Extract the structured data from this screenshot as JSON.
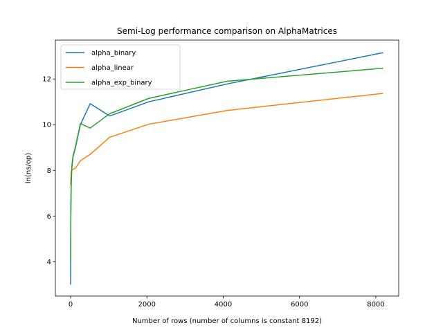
{
  "chart_data": {
    "type": "line",
    "title": "Semi-Log performance comparison on AlphaMatrices",
    "xlabel": "Number of rows (number of columns is constant 8192)",
    "ylabel": "ln(ns/op)",
    "xlim": [
      -400,
      8600
    ],
    "ylim": [
      2.5,
      13.7
    ],
    "xticks": [
      0,
      2000,
      4000,
      6000,
      8000
    ],
    "yticks": [
      4,
      6,
      8,
      10,
      12
    ],
    "grid": false,
    "legend_position": "top-left",
    "x": [
      1,
      2,
      4,
      8,
      16,
      32,
      64,
      128,
      256,
      512,
      1024,
      2048,
      4096,
      8192
    ],
    "series": [
      {
        "name": "alpha_binary",
        "color": "#1f77b4",
        "values": [
          3.0,
          4.1,
          5.4,
          6.5,
          7.4,
          8.1,
          8.6,
          9.0,
          10.0,
          10.92,
          10.38,
          11.0,
          11.78,
          13.15
        ]
      },
      {
        "name": "alpha_linear",
        "color": "#ff7f0e",
        "values": [
          7.4,
          7.35,
          7.55,
          7.7,
          7.95,
          8.0,
          8.05,
          8.1,
          8.42,
          8.7,
          9.45,
          10.02,
          10.62,
          11.37
        ]
      },
      {
        "name": "alpha_exp_binary",
        "color": "#2ca02c",
        "values": [
          4.0,
          5.0,
          6.0,
          6.8,
          7.6,
          8.2,
          8.65,
          9.05,
          10.05,
          9.85,
          10.48,
          11.15,
          11.9,
          12.47
        ]
      }
    ]
  }
}
